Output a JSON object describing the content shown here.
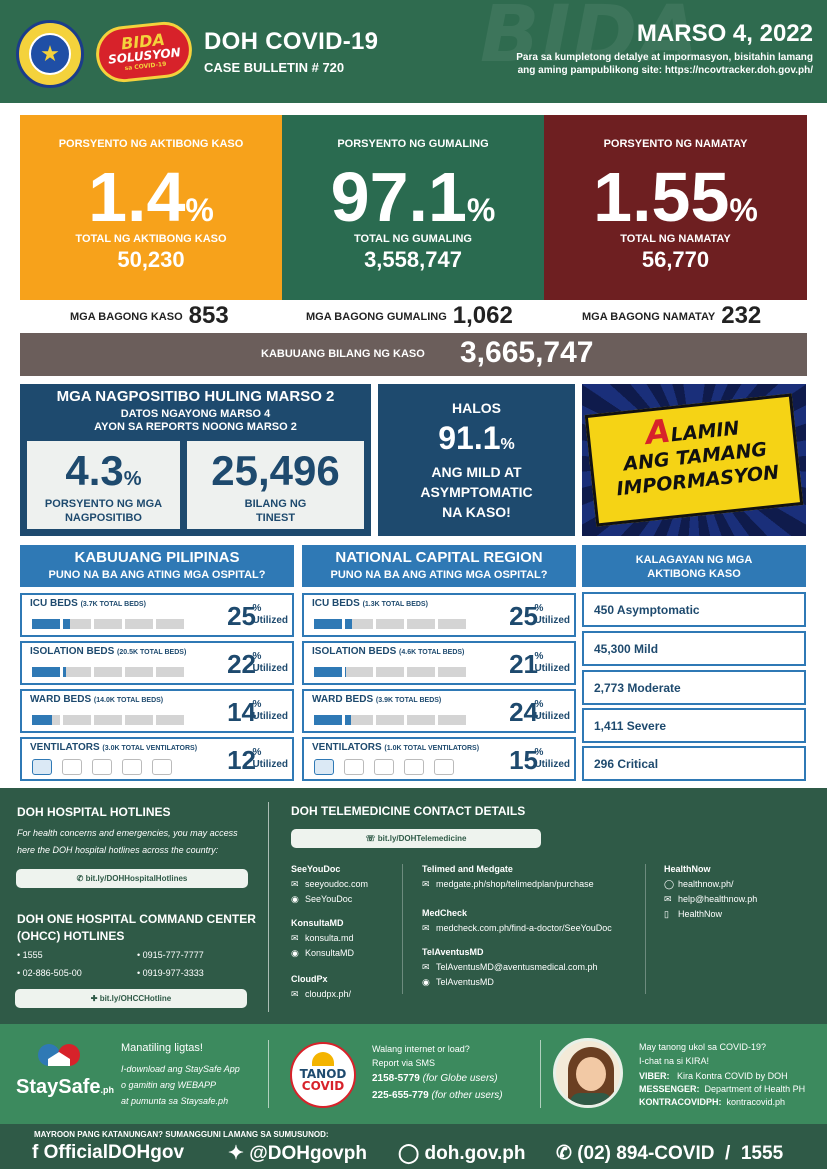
{
  "header": {
    "seal_text": "DEPARTMENT OF HEALTH",
    "logo_line1": "BIDA",
    "logo_line2": "SOLUSYON",
    "logo_line3": "sa COVID-19",
    "title": "DOH COVID-19",
    "bulletin": "CASE BULLETIN # 720",
    "date": "MARSO 4, 2022",
    "note": "Para sa kumpletong detalye at impormasyon, bisitahin lamang ang aming pampublikong site: https://ncovtracker.doh.gov.ph/",
    "watermark": "BIDA"
  },
  "stats": [
    {
      "label": "PORSYENTO NG AKTIBONG KASO",
      "percent": "1.4",
      "sign": "%",
      "total_label": "TOTAL NG AKTIBONG KASO",
      "total": "50,230",
      "color": "#f7a21b"
    },
    {
      "label": "PORSYENTO NG GUMALING",
      "percent": "97.1",
      "sign": "%",
      "total_label": "TOTAL NG GUMALING",
      "total": "3,558,747",
      "color": "#2a6b50"
    },
    {
      "label": "PORSYENTO NG NAMATAY",
      "percent": "1.55",
      "sign": "%",
      "total_label": "TOTAL NG NAMATAY",
      "total": "56,770",
      "color": "#6e1f21"
    }
  ],
  "new_cases": [
    {
      "label": "MGA BAGONG KASO",
      "value": "853"
    },
    {
      "label": "MGA BAGONG GUMALING",
      "value": "1,062"
    },
    {
      "label": "MGA BAGONG NAMATAY",
      "value": "232"
    }
  ],
  "total_cases": {
    "label": "KABUUANG BILANG NG KASO",
    "value": "3,665,747"
  },
  "positivity": {
    "title": "MGA NAGPOSITIBO HULING MARSO 2",
    "sub1": "DATOS NGAYONG MARSO 4",
    "sub2": "AYON SA REPORTS NOONG MARSO 2",
    "rate": "4.3",
    "rate_sign": "%",
    "rate_label1": "PORSYENTO NG MGA",
    "rate_label2": "NAGPOSITIBO",
    "tested": "25,496",
    "tested_label1": "BILANG NG",
    "tested_label2": "TINEST"
  },
  "mild": {
    "top": "HALOS",
    "value": "91.1",
    "sign": "%",
    "l1": "ANG MILD AT",
    "l2": "ASYMPTOMATIC",
    "l3": "NA KASO!"
  },
  "alamin": {
    "first": "A",
    "l1": "LAMIN",
    "l2": "ANG TAMANG",
    "l3": "IMPORMASYON"
  },
  "ph": {
    "title": "KABUUANG PILIPINAS",
    "subtitle": "PUNO NA BA ANG ATING MGA OSPITAL?",
    "beds": [
      {
        "name": "ICU BEDS",
        "total": "(3.7K TOTAL BEDS)",
        "pct": "25",
        "util": 0.25
      },
      {
        "name": "ISOLATION BEDS",
        "total": "(20.5K TOTAL BEDS)",
        "pct": "22",
        "util": 0.22
      },
      {
        "name": "WARD BEDS",
        "total": "(14.0K TOTAL BEDS)",
        "pct": "14",
        "util": 0.14
      },
      {
        "name": "VENTILATORS",
        "total": "(3.0K TOTAL VENTILATORS)",
        "pct": "12",
        "util": 0.12
      }
    ]
  },
  "ncr": {
    "title": "NATIONAL CAPITAL REGION",
    "subtitle": "PUNO NA BA ANG ATING MGA OSPITAL?",
    "beds": [
      {
        "name": "ICU BEDS",
        "total": "(1.3K TOTAL BEDS)",
        "pct": "25",
        "util": 0.25
      },
      {
        "name": "ISOLATION BEDS",
        "total": "(4.6K TOTAL BEDS)",
        "pct": "21",
        "util": 0.21
      },
      {
        "name": "WARD BEDS",
        "total": "(3.9K TOTAL BEDS)",
        "pct": "24",
        "util": 0.24
      },
      {
        "name": "VENTILATORS",
        "total": "(1.0K TOTAL VENTILATORS)",
        "pct": "15",
        "util": 0.15
      }
    ]
  },
  "pct_sign": "%",
  "utilized": "Utilized",
  "kalagayan": {
    "title1": "KALAGAYAN NG MGA",
    "title2": "AKTIBONG KASO",
    "items": [
      "450 Asymptomatic",
      "45,300 Mild",
      "2,773 Moderate",
      "1,411 Severe",
      "296 Critical"
    ]
  },
  "hotlines": {
    "title": "DOH HOSPITAL HOTLINES",
    "desc1": "For health concerns and emergencies, you may access",
    "desc2": "here the DOH hospital hotlines across the country:",
    "link": "bit.ly/DOHHospitalHotlines",
    "ohcc_title1": "DOH ONE HOSPITAL COMMAND CENTER",
    "ohcc_title2": "(OHCC) HOTLINES",
    "numbers": [
      "1555",
      "0915-777-7777",
      "02-886-505-00",
      "0919-977-3333"
    ],
    "ohcc_link": "bit.ly/OHCCHotline"
  },
  "telemed": {
    "title": "DOH TELEMEDICINE CONTACT DETAILS",
    "link": "bit.ly/DOHTelemedicine",
    "col1": [
      {
        "name": "SeeYouDoc",
        "lines": [
          "seeyoudoc.com",
          "SeeYouDoc"
        ]
      },
      {
        "name": "KonsultaMD",
        "lines": [
          "konsulta.md",
          "KonsultaMD"
        ]
      },
      {
        "name": "CloudPx",
        "lines": [
          "cloudpx.ph/"
        ]
      }
    ],
    "col2": [
      {
        "name": "Telimed and Medgate",
        "lines": [
          "medgate.ph/shop/telimedplan/purchase"
        ]
      },
      {
        "name": "MedCheck",
        "lines": [
          "medcheck.com.ph/find-a-doctor/SeeYouDoc"
        ]
      },
      {
        "name": "TelAventusMD",
        "lines": [
          "TelAventusMD@aventusmedical.com.ph",
          "TelAventusMD"
        ]
      }
    ],
    "col3": [
      {
        "name": "HealthNow",
        "lines": [
          "healthnow.ph/",
          "help@healthnow.ph",
          "HealthNow"
        ]
      }
    ]
  },
  "staysafe": {
    "logo": "StaySafe",
    "logo_sub": ".ph",
    "title": "Manatiling ligtas!",
    "l1": "I-download ang StaySafe App",
    "l2": "o gamitin ang WEBAPP",
    "l3": "at pumunta sa Staysafe.ph"
  },
  "tanod": {
    "logo1": "TANOD",
    "logo2": "COVID",
    "l1": "Walang internet or load?",
    "l2": "Report via SMS",
    "n1": "2158-5779",
    "n1_note": "(for Globe users)",
    "n2": "225-655-779",
    "n2_note": "(for other users)"
  },
  "kira": {
    "l1": "May tanong ukol sa COVID-19?",
    "l2": "I-chat na si KIRA!",
    "r1_label": "VIBER:",
    "r1": "Kira Kontra COVID by DOH",
    "r2_label": "MESSENGER:",
    "r2": "Department of Health PH",
    "r3_label": "KONTRACOVIDPH:",
    "r3": "kontracovid.ph"
  },
  "footer": {
    "question": "MAYROON PANG KATANUNGAN? SUMANGGUNI LAMANG SA SUMUSUNOD:",
    "facebook": "OfficialDOHgov",
    "twitter": "@DOHgovph",
    "web": "doh.gov.ph",
    "phone": "(02) 894-COVID  /  1555"
  }
}
